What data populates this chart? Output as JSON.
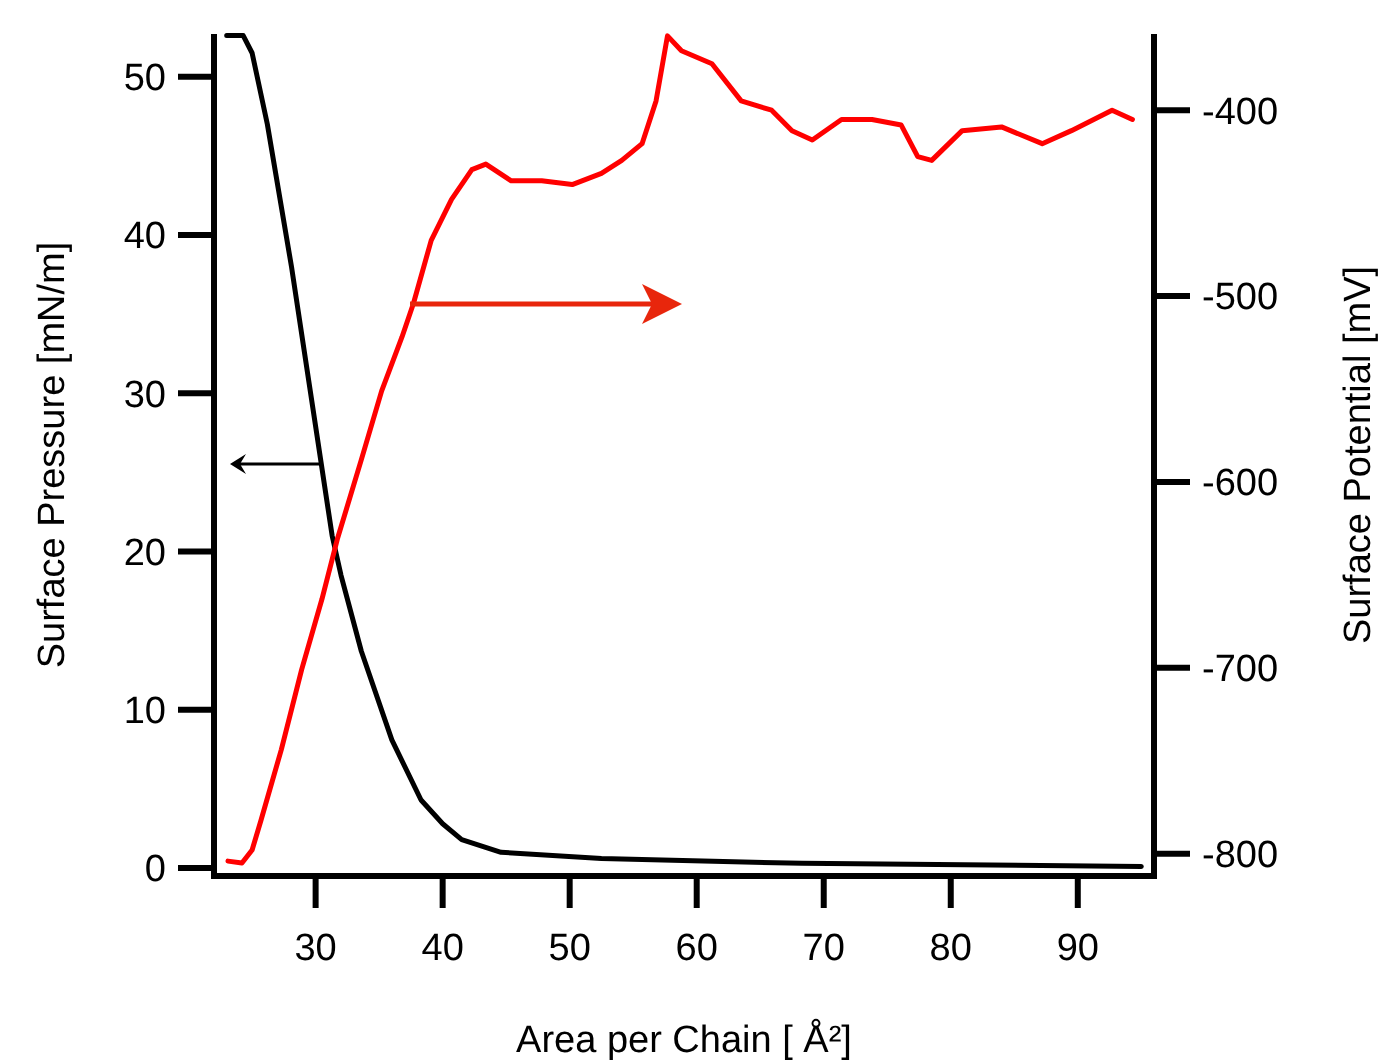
{
  "chart_data": {
    "type": "line",
    "xlabel": "Area per Chain [   Å²]",
    "ylabel": "Surface Pressure [mN/m]",
    "y2label": "Surface Potential [mV]",
    "xlim": [
      22,
      96
    ],
    "xticks": [
      30,
      40,
      50,
      60,
      70,
      80,
      90
    ],
    "ylim": [
      -0.5,
      52.7
    ],
    "yticks": [
      0,
      10,
      20,
      30,
      40,
      50
    ],
    "y2lim": [
      -812,
      -359
    ],
    "y2ticks": [
      -800,
      -700,
      -600,
      -500,
      -400
    ],
    "grid": false,
    "marker": "none",
    "line_style": "solid",
    "series": [
      {
        "color": "#000000",
        "x": [
          23,
          24.3,
          25,
          26.2,
          28.1,
          29.7,
          31.3,
          32,
          33.6,
          36,
          38.3,
          40,
          41.5,
          44.6,
          52.5,
          68.3,
          95
        ],
        "values": [
          52.6,
          52.6,
          51.5,
          47,
          38,
          29.5,
          21,
          18.5,
          13.7,
          8.1,
          4.3,
          2.8,
          1.8,
          1.0,
          0.6,
          0.3,
          0.1
        ]
      },
      {
        "color": "#ff0000",
        "axis": "y2",
        "x": [
          23.1,
          24.2,
          25,
          25.7,
          27.3,
          28.9,
          30.5,
          31.7,
          33.6,
          35.2,
          36.8,
          37.7,
          39.1,
          40.7,
          42.3,
          43.4,
          45.4,
          47.8,
          50.2,
          52.5,
          54.1,
          55.7,
          56.8,
          57.7,
          58.8,
          61.2,
          63.5,
          65.9,
          67.5,
          69.1,
          71.4,
          73.8,
          76.1,
          77.4,
          78.5,
          80.9,
          84,
          87.2,
          89.5,
          92.7,
          94.3
        ],
        "values": [
          -804,
          -805,
          -798,
          -782,
          -744,
          -701,
          -663,
          -631,
          -588,
          -551,
          -522,
          -504,
          -470,
          -448,
          -432,
          -429,
          -438,
          -438,
          -440,
          -434,
          -427,
          -418,
          -395,
          -360,
          -368,
          -375,
          -395,
          -400,
          -411,
          -416,
          -405,
          -405,
          -408,
          -425,
          -427,
          -411,
          -409,
          -418,
          -411,
          -400,
          -405
        ]
      }
    ]
  }
}
